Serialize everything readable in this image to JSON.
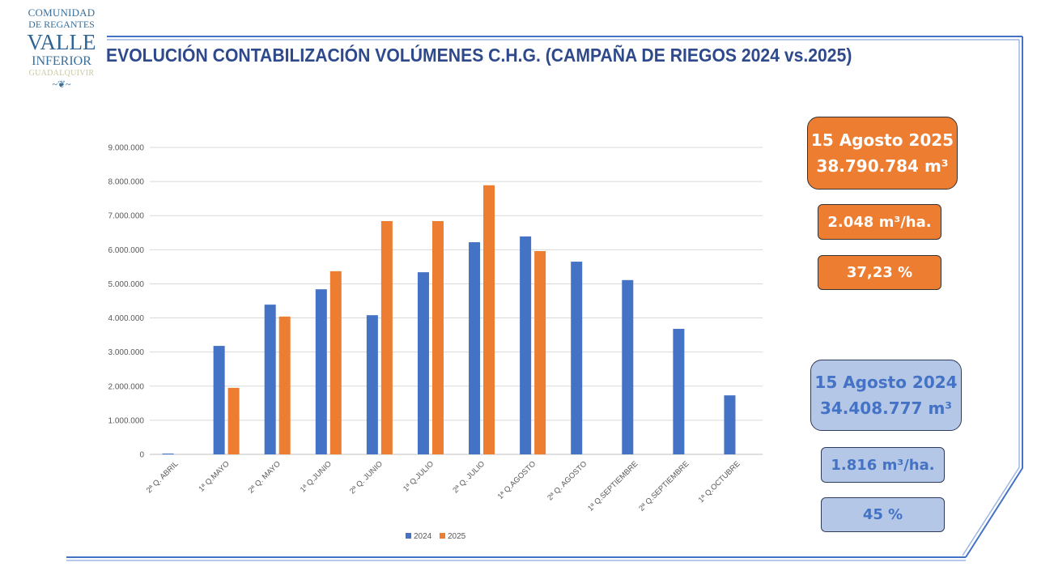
{
  "logo": {
    "line1": "COMUNIDAD",
    "line2": "DE REGANTES",
    "line3": "VALLE",
    "line4": "INFERIOR",
    "line5": "GUADALQUIVIR"
  },
  "header": {
    "title": "EVOLUCIÓN CONTABILIZACIÓN VOLÚMENES C.H.G. (CAMPAÑA DE RIEGOS 2024 vs.2025)"
  },
  "summary_2025": {
    "date": "15 Agosto 2025",
    "volume": "38.790.784 m³",
    "per_ha": "2.048 m³/ha.",
    "percent": "37,23 %",
    "color": "#ed7d31"
  },
  "summary_2024": {
    "date": "15 Agosto 2024",
    "volume": "34.408.777 m³",
    "per_ha": "1.816 m³/ha.",
    "percent": "45 %",
    "color": "#b4c7e7"
  },
  "chart_data": {
    "type": "bar",
    "title": "",
    "xlabel": "",
    "ylabel": "",
    "ylim": [
      0,
      9000000
    ],
    "yticks": [
      "0",
      "1.000.000",
      "2.000.000",
      "3.000.000",
      "4.000.000",
      "5.000.000",
      "6.000.000",
      "7.000.000",
      "8.000.000",
      "9.000.000"
    ],
    "grid": true,
    "legend": "bottom",
    "categories": [
      "2ª Q. ABRIL",
      "1ª Q.MAYO",
      "2ª Q. MAYO",
      "1ª Q.JUNIO",
      "2ª Q. JUNIO",
      "1ª Q.JULIO",
      "2ª Q. JULIO",
      "1ª Q.AGOSTO",
      "2ª Q. AGOSTO",
      "1ª Q.SEPTIEMBRE",
      "2ª Q.SEPTIEMBRE",
      "1ª Q.OCTUBRE"
    ],
    "series": [
      {
        "name": "2024",
        "color": "#4472c4",
        "values": [
          10000,
          3180000,
          4390000,
          4840000,
          4080000,
          5340000,
          6220000,
          6390000,
          5650000,
          5110000,
          3680000,
          1730000
        ]
      },
      {
        "name": "2025",
        "color": "#ed7d31",
        "values": [
          0,
          1950000,
          4040000,
          5370000,
          6840000,
          6840000,
          7890000,
          5960000,
          null,
          null,
          null,
          null
        ]
      }
    ]
  }
}
